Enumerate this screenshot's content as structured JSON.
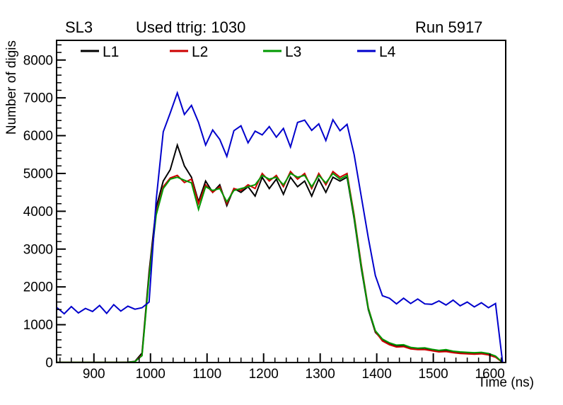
{
  "header": {
    "left_label": "SL3",
    "center_label": "Used ttrig: 1030",
    "right_label": "Run 5917"
  },
  "chart_data": {
    "type": "line",
    "title": "Used ttrig: 1030",
    "superlayer_label": "SL3",
    "run_label": "Run 5917",
    "xlabel": "Time (ns)",
    "ylabel": "Number of digis",
    "xlim": [
      834,
      1628
    ],
    "ylim": [
      0,
      8520
    ],
    "x_major_ticks": [
      900,
      1000,
      1100,
      1200,
      1300,
      1400,
      1500,
      1600
    ],
    "x_minor_step": 20,
    "y_major_ticks": [
      0,
      1000,
      2000,
      3000,
      4000,
      5000,
      6000,
      7000,
      8000
    ],
    "y_minor_step": 200,
    "grid": "off",
    "legend_position": "top-inside",
    "legend": [
      {
        "label": "L1",
        "color": "#000000"
      },
      {
        "label": "L2",
        "color": "#cc0000"
      },
      {
        "label": "L3",
        "color": "#009900"
      },
      {
        "label": "L4",
        "color": "#0000cc"
      }
    ],
    "x": [
      835,
      847.5,
      860,
      872.5,
      885,
      897.5,
      910,
      922.5,
      935,
      947.5,
      960,
      972.5,
      985,
      997.5,
      1010,
      1022.5,
      1035,
      1047.5,
      1060,
      1072.5,
      1085,
      1097.5,
      1110,
      1122.5,
      1135,
      1147.5,
      1160,
      1172.5,
      1185,
      1197.5,
      1210,
      1222.5,
      1235,
      1247.5,
      1260,
      1272.5,
      1285,
      1297.5,
      1310,
      1322.5,
      1335,
      1347.5,
      1360,
      1372.5,
      1385,
      1397.5,
      1410,
      1422.5,
      1435,
      1447.5,
      1460,
      1472.5,
      1485,
      1497.5,
      1510,
      1522.5,
      1535,
      1547.5,
      1560,
      1572.5,
      1585,
      1597.5,
      1610,
      1622.5
    ],
    "series": [
      {
        "name": "L1",
        "color": "#000000",
        "values": [
          5,
          5,
          5,
          5,
          5,
          5,
          5,
          5,
          5,
          5,
          10,
          30,
          250,
          2400,
          4100,
          4800,
          5100,
          5750,
          5200,
          4900,
          4250,
          4800,
          4500,
          4700,
          4150,
          4600,
          4500,
          4650,
          4400,
          4900,
          4600,
          4850,
          4450,
          4900,
          4650,
          4800,
          4400,
          4850,
          4500,
          4900,
          4800,
          4900,
          3800,
          2500,
          1400,
          800,
          600,
          500,
          430,
          450,
          380,
          360,
          380,
          330,
          300,
          320,
          280,
          260,
          250,
          240,
          250,
          220,
          150,
          0
        ]
      },
      {
        "name": "L2",
        "color": "#cc0000",
        "values": [
          5,
          5,
          5,
          5,
          5,
          5,
          5,
          5,
          5,
          5,
          8,
          25,
          200,
          2300,
          3950,
          4650,
          4880,
          4950,
          4760,
          4850,
          4200,
          4700,
          4500,
          4650,
          4200,
          4600,
          4550,
          4700,
          4600,
          5000,
          4800,
          4950,
          4650,
          5050,
          4850,
          5000,
          4600,
          5000,
          4700,
          5050,
          4900,
          5000,
          3900,
          2600,
          1450,
          820,
          570,
          470,
          410,
          420,
          360,
          340,
          340,
          310,
          280,
          290,
          260,
          240,
          230,
          220,
          230,
          200,
          140,
          0
        ]
      },
      {
        "name": "L3",
        "color": "#009900",
        "values": [
          5,
          5,
          5,
          5,
          5,
          5,
          5,
          5,
          5,
          5,
          8,
          25,
          180,
          2250,
          3900,
          4600,
          4850,
          4900,
          4820,
          4750,
          4050,
          4650,
          4550,
          4600,
          4250,
          4550,
          4600,
          4650,
          4700,
          4950,
          4850,
          4900,
          4700,
          5000,
          4900,
          4950,
          4650,
          4950,
          4750,
          5000,
          4850,
          4950,
          3850,
          2550,
          1430,
          840,
          620,
          520,
          460,
          470,
          400,
          380,
          390,
          350,
          320,
          340,
          300,
          280,
          270,
          260,
          270,
          240,
          170,
          0
        ]
      },
      {
        "name": "L4",
        "color": "#0000cc",
        "values": [
          1450,
          1290,
          1480,
          1310,
          1430,
          1350,
          1510,
          1300,
          1530,
          1360,
          1490,
          1410,
          1450,
          1600,
          4300,
          6100,
          6600,
          7130,
          6560,
          6800,
          6350,
          5750,
          6150,
          5900,
          5450,
          6130,
          6260,
          5810,
          6120,
          6020,
          6240,
          5960,
          6190,
          5700,
          6350,
          6410,
          6140,
          6310,
          5870,
          6420,
          6130,
          6300,
          5500,
          4400,
          3300,
          2300,
          1765,
          1700,
          1550,
          1700,
          1560,
          1680,
          1550,
          1540,
          1630,
          1520,
          1650,
          1500,
          1600,
          1470,
          1580,
          1450,
          1560,
          0
        ]
      }
    ]
  }
}
